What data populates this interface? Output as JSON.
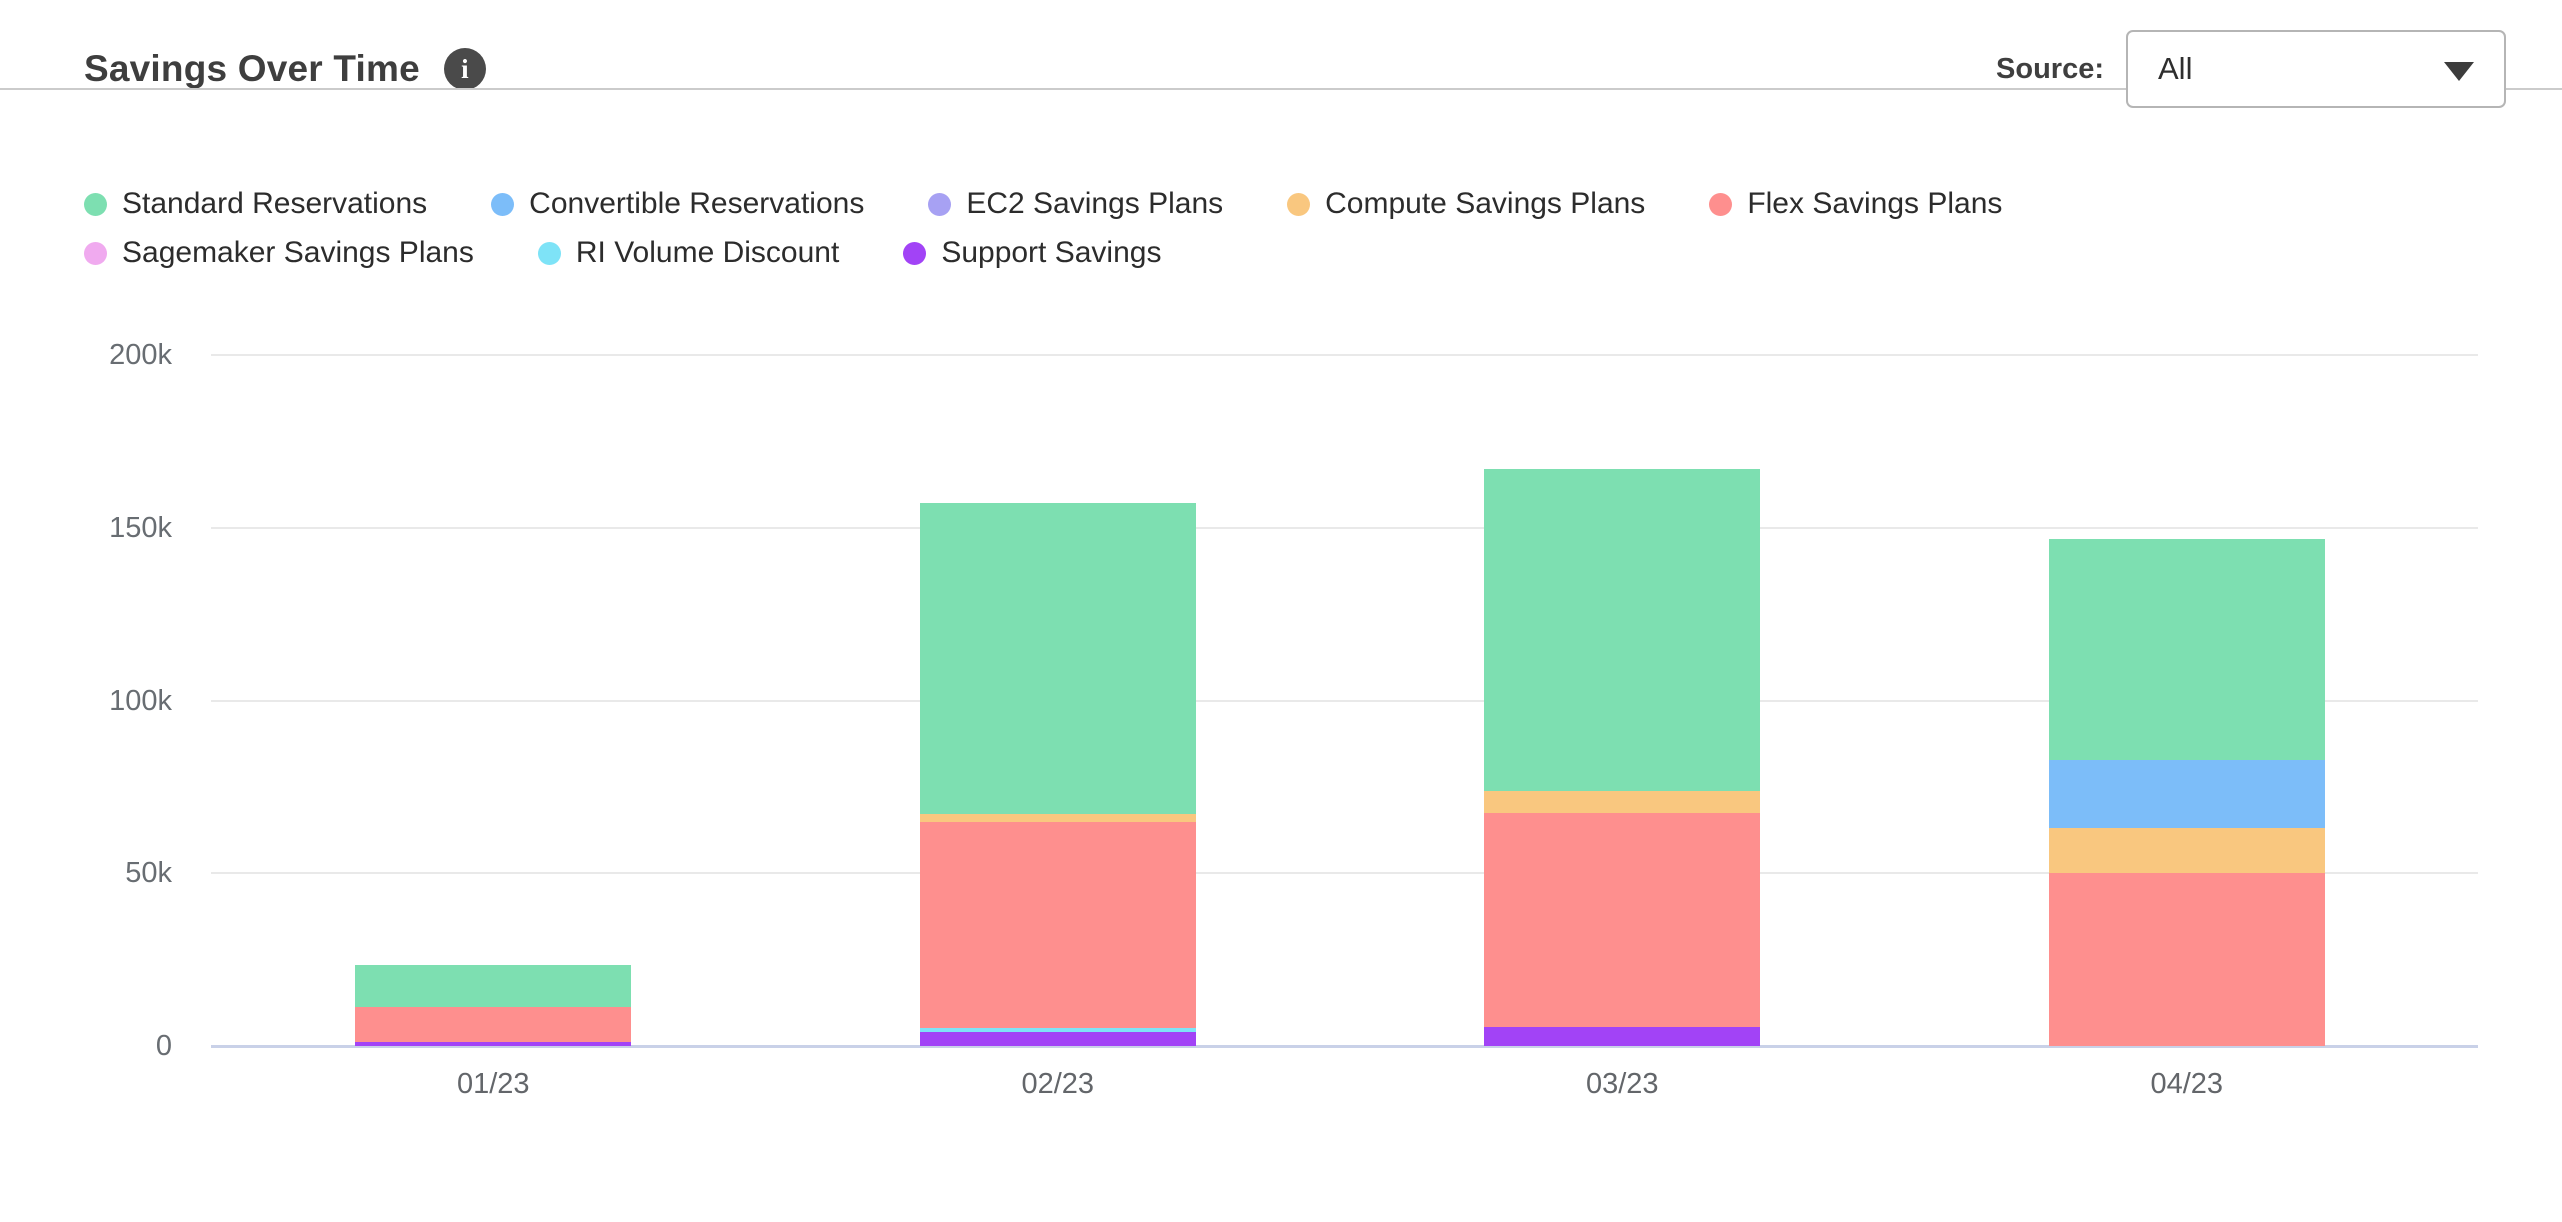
{
  "header": {
    "title": "Savings Over Time",
    "info_icon": "info",
    "source_label": "Source:",
    "source_value": "All"
  },
  "chart_data": {
    "type": "bar",
    "stacked": true,
    "title": "Savings Over Time",
    "categories": [
      "01/23",
      "02/23",
      "03/23",
      "04/23"
    ],
    "series": [
      {
        "name": "Standard Reservations",
        "color": "#7ddfb1",
        "values": [
          12200,
          90000,
          93000,
          64000
        ]
      },
      {
        "name": "Convertible Reservations",
        "color": "#7cbdf9",
        "values": [
          0,
          0,
          0,
          19700
        ]
      },
      {
        "name": "EC2 Savings Plans",
        "color": "#a7a1f3",
        "values": [
          0,
          0,
          0,
          0
        ]
      },
      {
        "name": "Compute Savings Plans",
        "color": "#f9c77f",
        "values": [
          0,
          2600,
          6400,
          13000
        ]
      },
      {
        "name": "Flex Savings Plans",
        "color": "#fe8f8e",
        "values": [
          10000,
          59500,
          62000,
          50000
        ]
      },
      {
        "name": "Sagemaker Savings Plans",
        "color": "#f0aaef",
        "values": [
          0,
          0,
          0,
          0
        ]
      },
      {
        "name": "RI Volume Discount",
        "color": "#7ee3f7",
        "values": [
          0,
          1200,
          0,
          0
        ]
      },
      {
        "name": "Support Savings",
        "color": "#a243f6",
        "values": [
          1200,
          4000,
          5500,
          0
        ]
      }
    ],
    "stack_order_bottom_to_top": "reverse of legend order",
    "y_ticks": [
      {
        "label": "200k",
        "value": 200000
      },
      {
        "label": "150k",
        "value": 150000
      },
      {
        "label": "100k",
        "value": 100000
      },
      {
        "label": "50k",
        "value": 50000
      },
      {
        "label": "0",
        "value": 0
      }
    ],
    "ylim": [
      0,
      200000
    ],
    "xlabel": "",
    "ylabel": "",
    "grid": "horizontal",
    "legend_position": "top-left",
    "legend_rows": [
      5,
      3
    ]
  }
}
